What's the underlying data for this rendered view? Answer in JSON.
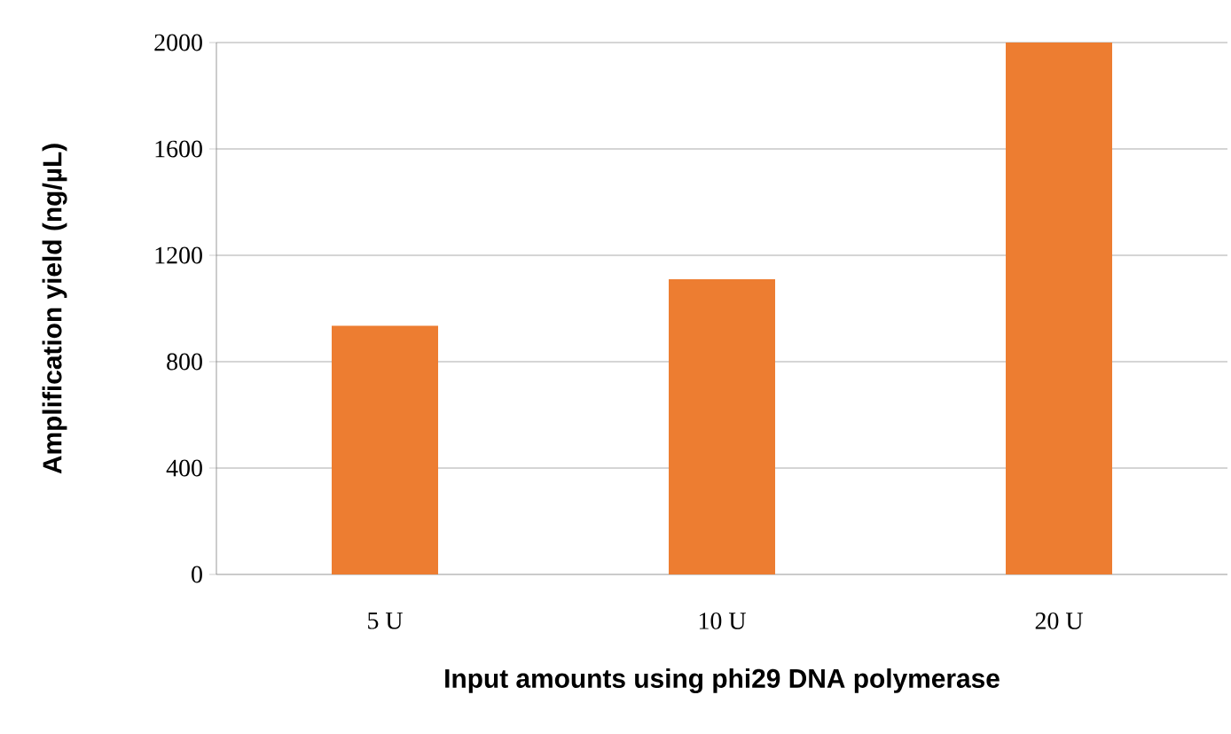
{
  "chart_data": {
    "type": "bar",
    "xlabel": "Input amounts using phi29 DNA polymerase",
    "ylabel": "Amplification yield (ng/µL)",
    "categories": [
      "5 U",
      "10 U",
      "20 U"
    ],
    "values": [
      935,
      1110,
      2000
    ],
    "color": "#ed7d31",
    "ylim": [
      0,
      2000
    ],
    "yticks": [
      0,
      400,
      800,
      1200,
      1600,
      2000
    ],
    "grid": "y"
  }
}
